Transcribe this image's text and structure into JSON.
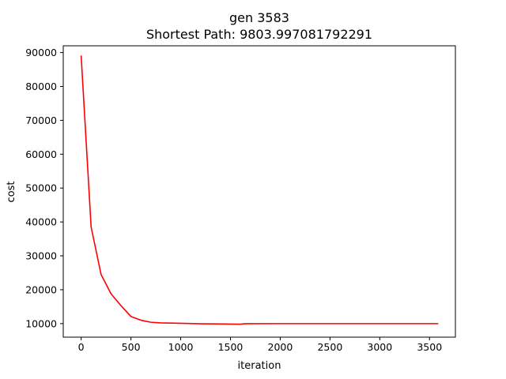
{
  "chart_data": {
    "type": "line",
    "title_line1": "gen 3583",
    "title_line2": "Shortest Path: 9803.997081792291",
    "xlabel": "iteration",
    "ylabel": "cost",
    "xlim": [
      -180,
      3760
    ],
    "ylim": [
      6000,
      92000
    ],
    "xticks": [
      0,
      500,
      1000,
      1500,
      2000,
      2500,
      3000,
      3500
    ],
    "xtick_labels": [
      "0",
      "500",
      "1000",
      "1500",
      "2000",
      "2500",
      "3000",
      "3500"
    ],
    "yticks": [
      10000,
      20000,
      30000,
      40000,
      50000,
      60000,
      70000,
      80000,
      90000
    ],
    "ytick_labels": [
      "10000",
      "20000",
      "30000",
      "40000",
      "50000",
      "60000",
      "70000",
      "80000",
      "90000"
    ],
    "grid": false,
    "series": [
      {
        "name": "cost",
        "color": "#ff0000",
        "x": [
          0,
          100,
          200,
          300,
          400,
          500,
          600,
          700,
          800,
          900,
          1000,
          1200,
          1400,
          1600,
          1650,
          2000,
          2500,
          3000,
          3583
        ],
        "y": [
          89000,
          38500,
          24500,
          18800,
          15300,
          12100,
          11000,
          10400,
          10200,
          10150,
          10100,
          9950,
          9880,
          9830,
          9980,
          9990,
          9990,
          9990,
          9990
        ]
      }
    ]
  }
}
